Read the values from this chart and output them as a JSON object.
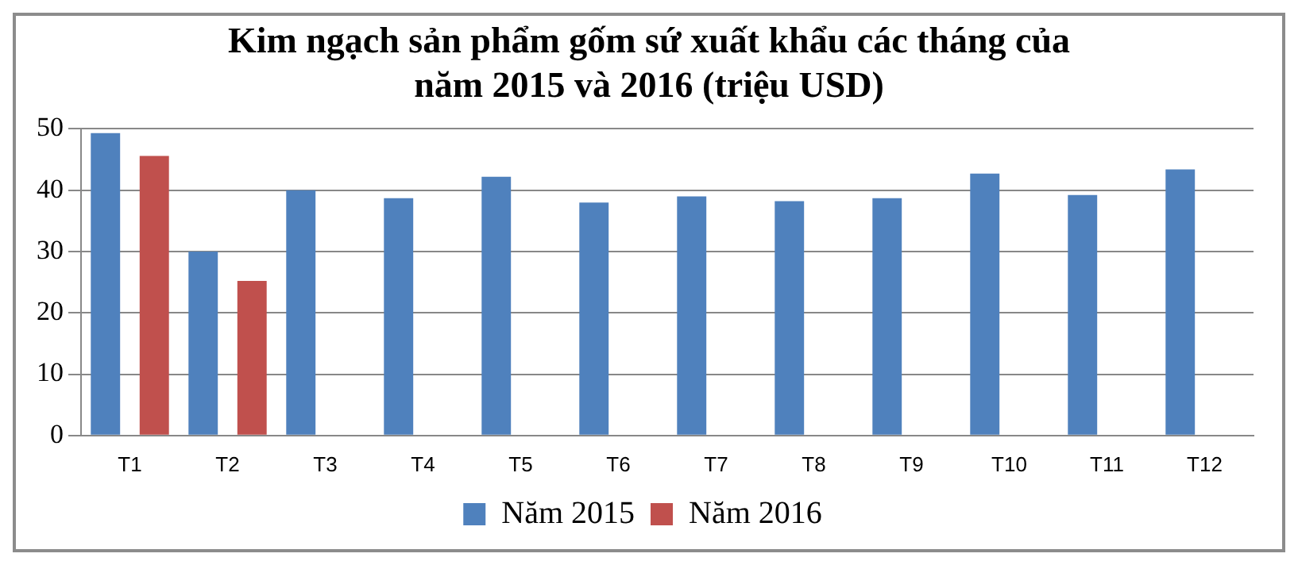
{
  "chart_data": {
    "type": "bar",
    "title": "Kim ngạch sản phẩm gốm sứ xuất khẩu các tháng của năm 2015 và 2016 (triệu USD)",
    "categories": [
      "T1",
      "T2",
      "T3",
      "T4",
      "T5",
      "T6",
      "T7",
      "T8",
      "T9",
      "T10",
      "T11",
      "T12"
    ],
    "series": [
      {
        "name": "Năm 2015",
        "color": "#4f81bd",
        "values": [
          49.3,
          30.0,
          40.0,
          38.7,
          42.2,
          38.0,
          39.0,
          38.2,
          38.7,
          42.7,
          39.2,
          43.4
        ]
      },
      {
        "name": "Năm 2016",
        "color": "#c0504d",
        "values": [
          45.6,
          25.2,
          null,
          null,
          null,
          null,
          null,
          null,
          null,
          null,
          null,
          null
        ]
      }
    ],
    "ylim": [
      0,
      50
    ],
    "yticks": [
      0,
      10,
      20,
      30,
      40,
      50
    ],
    "grid": "y",
    "legend": "bottom"
  }
}
